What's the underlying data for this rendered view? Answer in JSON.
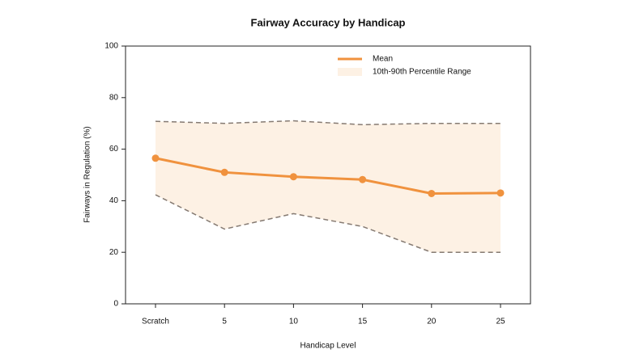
{
  "chart_data": {
    "type": "line",
    "title": "Fairway Accuracy by Handicap",
    "x_label": "Handicap Level",
    "y_label": "Fairways in Regulation (%)",
    "categories": [
      "Scratch",
      "5",
      "10",
      "15",
      "20",
      "25"
    ],
    "series": [
      {
        "name": "Mean",
        "color": "#f0923e",
        "values": [
          56.5,
          51,
          49.3,
          48.2,
          42.8,
          43
        ]
      }
    ],
    "band": {
      "name": "10th-90th Percentile Range",
      "color": "#fdf1e4",
      "line_color": "#857a72",
      "lower": [
        42.3,
        29,
        35,
        30,
        20,
        20
      ],
      "upper": [
        70.8,
        70,
        71,
        69.5,
        70,
        70
      ]
    },
    "ylim": [
      0,
      100
    ],
    "yticks": [
      0,
      20,
      40,
      60,
      80,
      100
    ],
    "legend": "top"
  }
}
